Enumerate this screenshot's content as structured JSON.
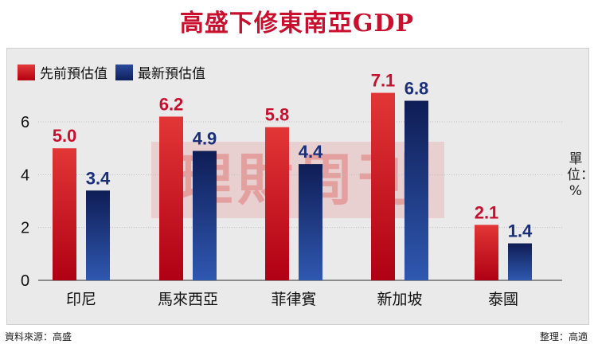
{
  "chart_data": {
    "type": "bar",
    "title": "高盛下修東南亞GDP",
    "categories": [
      "印尼",
      "馬來西亞",
      "菲律賓",
      "新加坡",
      "泰國"
    ],
    "series": [
      {
        "name": "先前預估值",
        "values": [
          5.0,
          6.2,
          5.8,
          7.1,
          2.1
        ],
        "labels": [
          "5.0",
          "6.2",
          "5.8",
          "7.1",
          "2.1"
        ],
        "color": "#c8102e"
      },
      {
        "name": "最新預估值",
        "values": [
          3.4,
          4.9,
          4.4,
          6.8,
          1.4
        ],
        "labels": [
          "3.4",
          "4.9",
          "4.4",
          "6.8",
          "1.4"
        ],
        "color": "#1a2f7a"
      }
    ],
    "yticks": [
      0,
      2,
      4,
      6
    ],
    "ylim": [
      0,
      7.6
    ],
    "unit": "單位：%",
    "grid": true,
    "legend": "top-left"
  },
  "watermark": "理財周刊",
  "source": "資料來源：高盛",
  "credit": "整理：高適",
  "colors": {
    "title": "#c8102e",
    "panel": "#eaeaea",
    "prev": "#c8102e",
    "latest": "#1a2f7a"
  }
}
